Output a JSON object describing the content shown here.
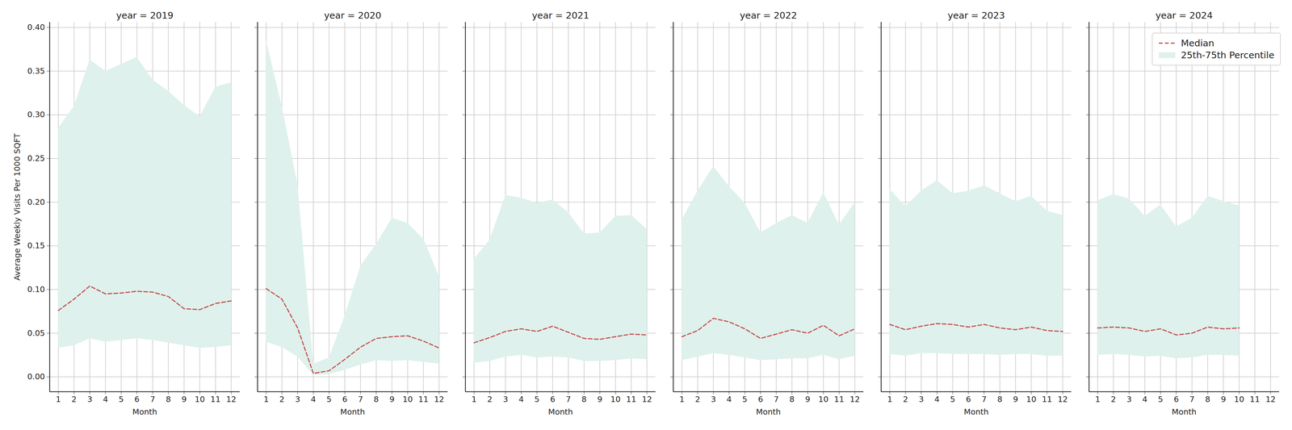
{
  "chart_data": {
    "type": "line",
    "x_label": "Month",
    "y_label": "Average Weekly Visits Per 1000 SQFT",
    "xlim": [
      0.45,
      12.55
    ],
    "xticks": [
      1,
      2,
      3,
      4,
      5,
      6,
      7,
      8,
      9,
      10,
      11,
      12
    ],
    "ylim": [
      -0.017,
      0.406
    ],
    "yticks": [
      {
        "value": 0,
        "label": "0.00"
      },
      {
        "value": 0.05,
        "label": "0.05"
      },
      {
        "value": 0.1,
        "label": "0.10"
      },
      {
        "value": 0.15,
        "label": "0.15"
      },
      {
        "value": 0.2,
        "label": "0.20"
      },
      {
        "value": 0.25,
        "label": "0.25"
      },
      {
        "value": 0.3,
        "label": "0.30"
      },
      {
        "value": 0.35,
        "label": "0.35"
      },
      {
        "value": 0.4,
        "label": "0.40"
      }
    ],
    "grid": true,
    "legend": "upper right",
    "series": [
      {
        "name": "Median",
        "type": "line",
        "color": "#c44e52",
        "line_style": "dashed"
      },
      {
        "name": "25th-75th Percentile",
        "type": "area",
        "color": "#dff1ec"
      }
    ],
    "panels": [
      {
        "title": "year = 2019",
        "x": [
          1,
          2,
          3,
          4,
          5,
          6,
          7,
          8,
          9,
          10,
          11,
          12
        ],
        "median": [
          0.076,
          0.089,
          0.104,
          0.095,
          0.096,
          0.098,
          0.097,
          0.092,
          0.078,
          0.077,
          0.084,
          0.087
        ],
        "lower": [
          0.033,
          0.036,
          0.044,
          0.04,
          0.042,
          0.044,
          0.042,
          0.039,
          0.036,
          0.033,
          0.034,
          0.036
        ],
        "upper": [
          0.285,
          0.31,
          0.363,
          0.35,
          0.358,
          0.366,
          0.34,
          0.327,
          0.311,
          0.298,
          0.332,
          0.337
        ]
      },
      {
        "title": "year = 2020",
        "x": [
          1,
          2,
          3,
          4,
          5,
          6,
          7,
          8,
          9,
          10,
          11,
          12
        ],
        "median": [
          0.101,
          0.089,
          0.056,
          0.004,
          0.007,
          0.02,
          0.034,
          0.044,
          0.046,
          0.047,
          0.041,
          0.033
        ],
        "lower": [
          0.04,
          0.034,
          0.023,
          0.002,
          0.003,
          0.008,
          0.014,
          0.019,
          0.018,
          0.019,
          0.017,
          0.015
        ],
        "upper": [
          0.385,
          0.31,
          0.22,
          0.015,
          0.022,
          0.07,
          0.127,
          0.152,
          0.182,
          0.176,
          0.158,
          0.115
        ]
      },
      {
        "title": "year = 2021",
        "x": [
          1,
          2,
          3,
          4,
          5,
          6,
          7,
          8,
          9,
          10,
          11,
          12
        ],
        "median": [
          0.039,
          0.045,
          0.052,
          0.055,
          0.052,
          0.058,
          0.051,
          0.044,
          0.043,
          0.046,
          0.049,
          0.048
        ],
        "lower": [
          0.016,
          0.018,
          0.023,
          0.025,
          0.022,
          0.023,
          0.022,
          0.018,
          0.018,
          0.019,
          0.021,
          0.02
        ],
        "upper": [
          0.135,
          0.157,
          0.208,
          0.205,
          0.199,
          0.203,
          0.188,
          0.164,
          0.165,
          0.184,
          0.185,
          0.169
        ]
      },
      {
        "title": "year = 2022",
        "x": [
          1,
          2,
          3,
          4,
          5,
          6,
          7,
          8,
          9,
          10,
          11,
          12
        ],
        "median": [
          0.046,
          0.053,
          0.067,
          0.063,
          0.055,
          0.044,
          0.049,
          0.054,
          0.05,
          0.059,
          0.047,
          0.055
        ],
        "lower": [
          0.019,
          0.023,
          0.027,
          0.025,
          0.022,
          0.019,
          0.02,
          0.021,
          0.021,
          0.025,
          0.02,
          0.024
        ],
        "upper": [
          0.18,
          0.213,
          0.241,
          0.218,
          0.199,
          0.165,
          0.176,
          0.185,
          0.176,
          0.211,
          0.174,
          0.2
        ]
      },
      {
        "title": "year = 2023",
        "x": [
          1,
          2,
          3,
          4,
          5,
          6,
          7,
          8,
          9,
          10,
          11,
          12
        ],
        "median": [
          0.06,
          0.054,
          0.058,
          0.061,
          0.06,
          0.057,
          0.06,
          0.056,
          0.054,
          0.057,
          0.053,
          0.052
        ],
        "lower": [
          0.026,
          0.024,
          0.027,
          0.027,
          0.026,
          0.026,
          0.026,
          0.025,
          0.026,
          0.026,
          0.024,
          0.024
        ],
        "upper": [
          0.215,
          0.195,
          0.213,
          0.225,
          0.21,
          0.213,
          0.219,
          0.21,
          0.201,
          0.207,
          0.19,
          0.185
        ]
      },
      {
        "title": "year = 2024",
        "x": [
          1,
          2,
          3,
          4,
          5,
          6,
          7,
          8,
          9,
          10
        ],
        "median": [
          0.056,
          0.057,
          0.056,
          0.052,
          0.055,
          0.048,
          0.05,
          0.057,
          0.055,
          0.056
        ],
        "lower": [
          0.025,
          0.026,
          0.025,
          0.023,
          0.024,
          0.021,
          0.022,
          0.025,
          0.025,
          0.024
        ],
        "upper": [
          0.202,
          0.209,
          0.204,
          0.184,
          0.197,
          0.172,
          0.182,
          0.207,
          0.201,
          0.196
        ]
      }
    ]
  }
}
